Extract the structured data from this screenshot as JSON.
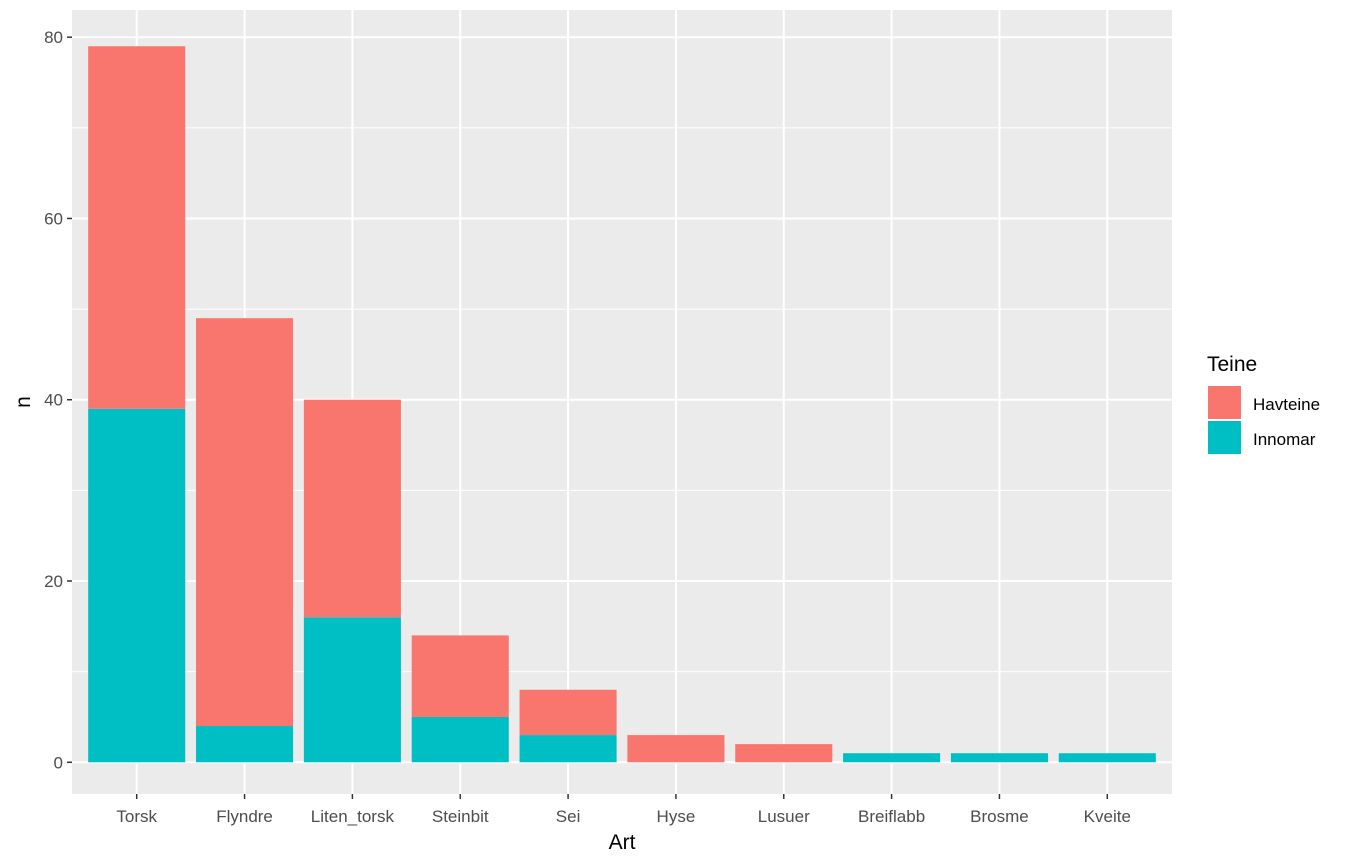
{
  "chart_data": {
    "type": "bar",
    "stacked": true,
    "categories": [
      "Torsk",
      "Flyndre",
      "Liten_torsk",
      "Steinbit",
      "Sei",
      "Hyse",
      "Lusuer",
      "Breiflabb",
      "Brosme",
      "Kveite"
    ],
    "series": [
      {
        "name": "Havteine",
        "color": "#F8766D",
        "values": [
          40,
          45,
          24,
          9,
          5,
          3,
          2,
          0,
          0,
          0
        ]
      },
      {
        "name": "Innomar",
        "color": "#00BFC4",
        "values": [
          39,
          4,
          16,
          5,
          3,
          0,
          0,
          1,
          1,
          1
        ]
      }
    ],
    "title": "",
    "xlabel": "Art",
    "ylabel": "n",
    "ylim": [
      -3.5,
      83
    ],
    "yticks": [
      0,
      20,
      40,
      60,
      80
    ],
    "legend": {
      "title": "Teine",
      "position": "right"
    },
    "panel_background": "#EBEBEB",
    "grid": true
  }
}
